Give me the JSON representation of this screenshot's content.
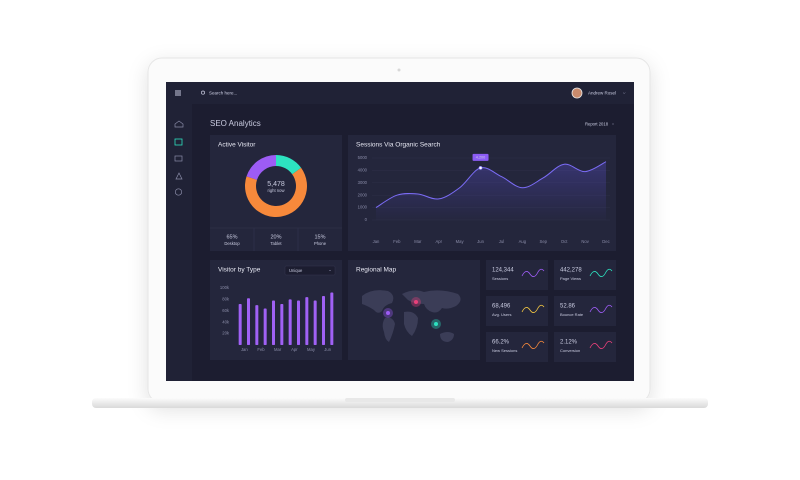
{
  "app": {
    "search_placeholder": "Search here...",
    "user_name": "Andrew Rosel",
    "page_title": "SEO Analytics",
    "report_selector": "Report 2018"
  },
  "chart_data": [
    {
      "type": "pie",
      "title": "Active Visitor",
      "center_value": "5,478",
      "center_label": "right now",
      "categories": [
        "Desktop",
        "Tablet",
        "Phone"
      ],
      "values": [
        65,
        20,
        15
      ],
      "value_labels": [
        "65%",
        "20%",
        "15%"
      ],
      "colors": [
        "#f7893b",
        "#9d5cf5",
        "#2de2c0"
      ]
    },
    {
      "type": "line",
      "title": "Sessions Via Organic Search",
      "categories": [
        "Jan",
        "Feb",
        "Mar",
        "Apr",
        "May",
        "Jun",
        "Jul",
        "Aug",
        "Sep",
        "Oct",
        "Nov",
        "Dec"
      ],
      "values": [
        1000,
        2000,
        2100,
        1700,
        2600,
        4200,
        3500,
        2600,
        3400,
        4500,
        3900,
        4700
      ],
      "value_labels": [
        null,
        null,
        null,
        null,
        null,
        "4,200",
        null,
        null,
        null,
        null,
        null,
        null
      ],
      "color": "#7b6cf6",
      "ylim": [
        0,
        5000
      ],
      "yticks": [
        0,
        1000,
        2000,
        3000,
        4000,
        5000
      ],
      "grid": true
    },
    {
      "type": "bar",
      "title": "Visitor by Type",
      "filter": "Unique",
      "categories": [
        "Jan",
        null,
        "Feb",
        null,
        "Mar",
        null,
        "Apr",
        null,
        "May",
        null,
        "Jun",
        null
      ],
      "values": [
        72000,
        82000,
        70000,
        64000,
        78000,
        72000,
        80000,
        78000,
        84000,
        78000,
        86000,
        92000
      ],
      "color": "#a061f5",
      "ylim": [
        0,
        100000
      ],
      "yticks": [
        {
          "value": 20000,
          "label": "20k"
        },
        {
          "value": 40000,
          "label": "40k"
        },
        {
          "value": 60000,
          "label": "60k"
        },
        {
          "value": 80000,
          "label": "80k"
        },
        {
          "value": 100000,
          "label": "100k"
        }
      ]
    }
  ],
  "map": {
    "title": "Regional Map"
  },
  "stats": [
    {
      "value": "124,344",
      "label": "Sessions"
    },
    {
      "value": "442,278",
      "label": "Page Views"
    },
    {
      "value": "68,496",
      "label": "Avg. Users"
    },
    {
      "value": "52.86",
      "label": "Bounce Rate"
    },
    {
      "value": "66.2%",
      "label": "New Sessions"
    },
    {
      "value": "2.12%",
      "label": "Conversion"
    }
  ]
}
